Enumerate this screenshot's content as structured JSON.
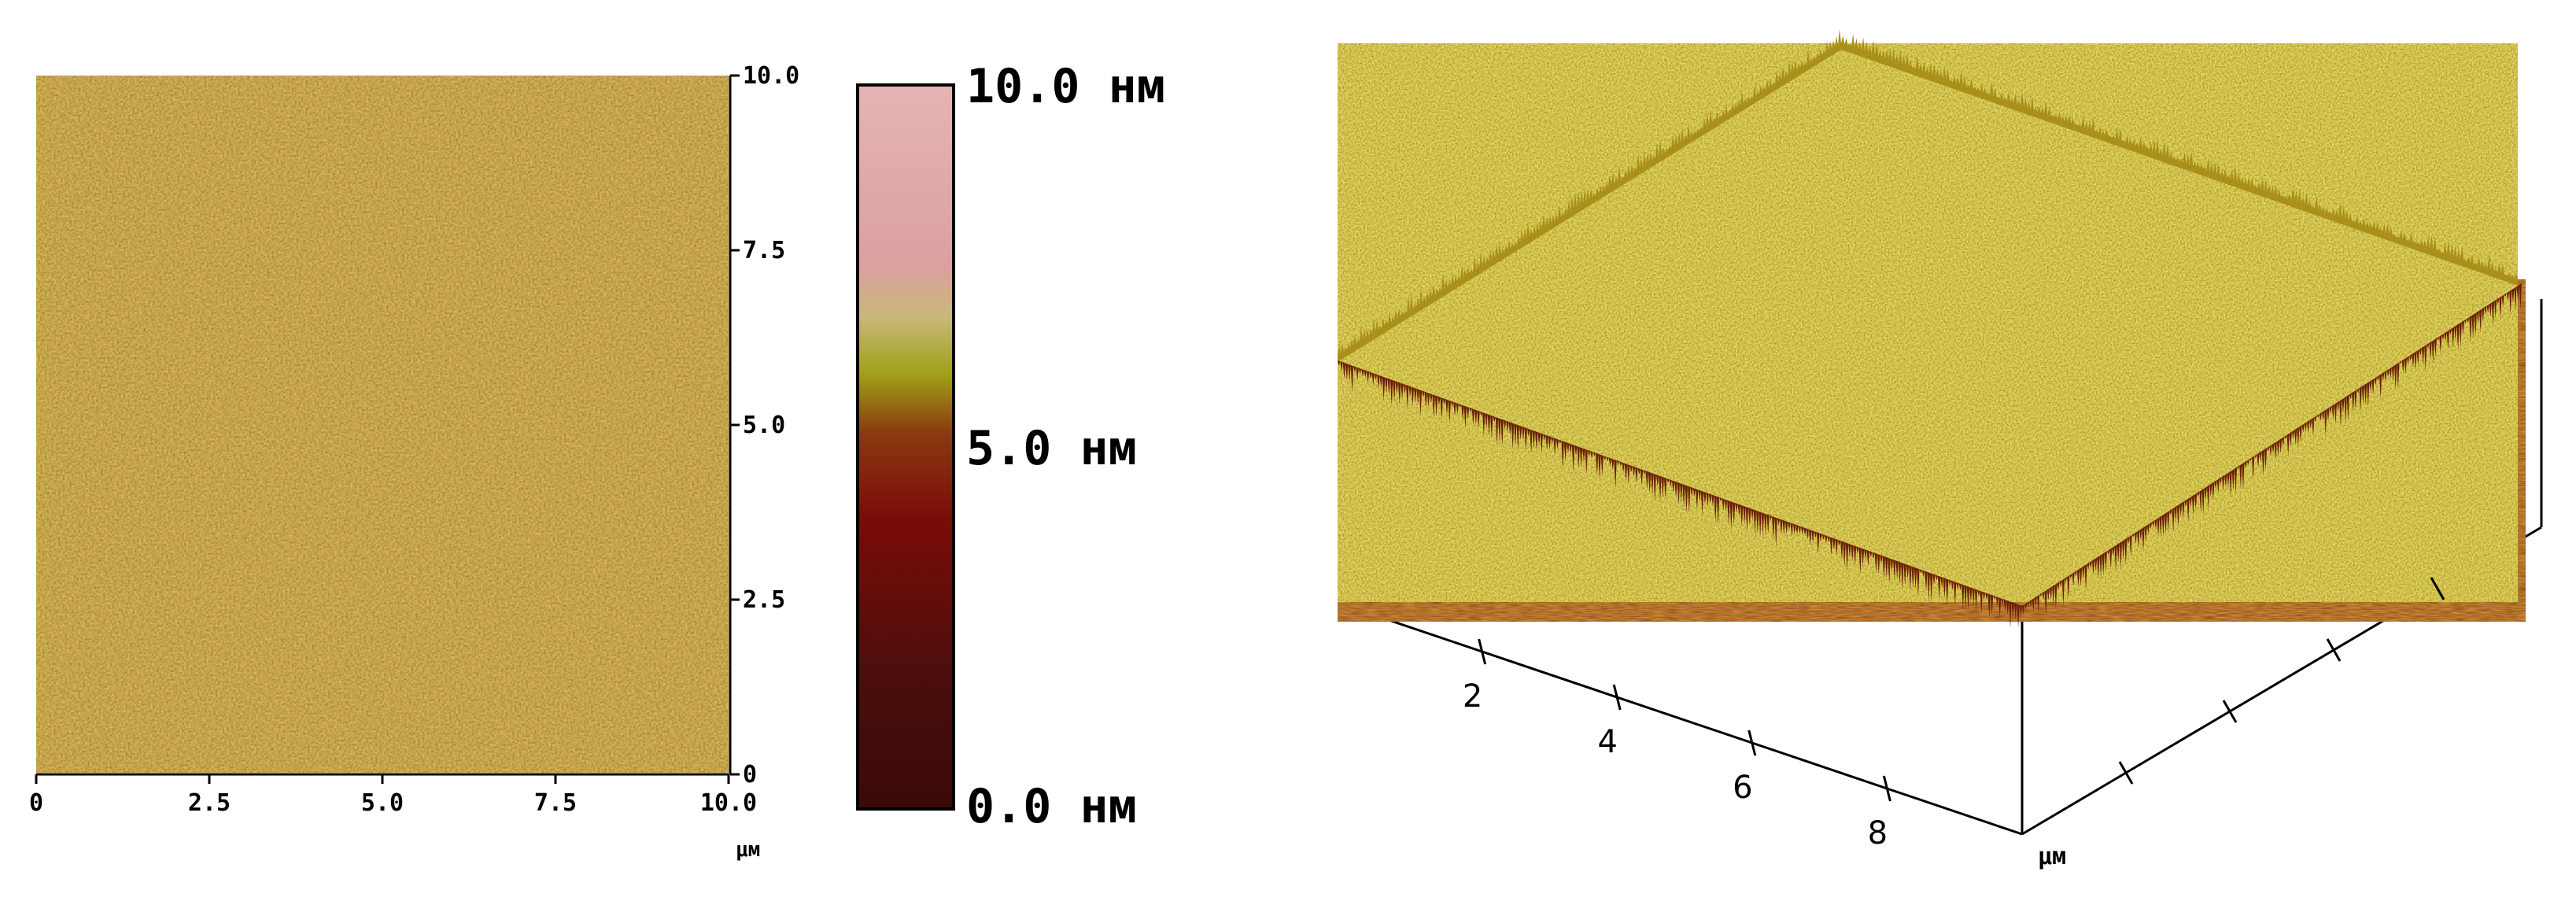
{
  "topography_map": {
    "x_ticks": [
      "0",
      "2.5",
      "5.0",
      "7.5",
      "10.0"
    ],
    "y_ticks": [
      "0",
      "2.5",
      "5.0",
      "7.5",
      "10.0"
    ],
    "unit": "μм",
    "colors": {
      "base": "#9a5f1a",
      "highlight": "#c8a040",
      "shadow": "#5a3308"
    }
  },
  "color_scale": {
    "labels": {
      "max": "10.0 нм",
      "mid": "5.0 нм",
      "min": "0.0 нм"
    },
    "gradient": [
      "#3a0a08",
      "#4a0e0c",
      "#7a0c08",
      "#8a3a10",
      "#a0a018",
      "#c8b878",
      "#dca0a0",
      "#e4b4b4"
    ]
  },
  "surface_3d": {
    "x_ticks": [
      "2",
      "4",
      "6",
      "8"
    ],
    "unit": "μм",
    "colors": {
      "top": "#a8901a",
      "bright": "#d0c040",
      "dark": "#6a2008"
    }
  }
}
